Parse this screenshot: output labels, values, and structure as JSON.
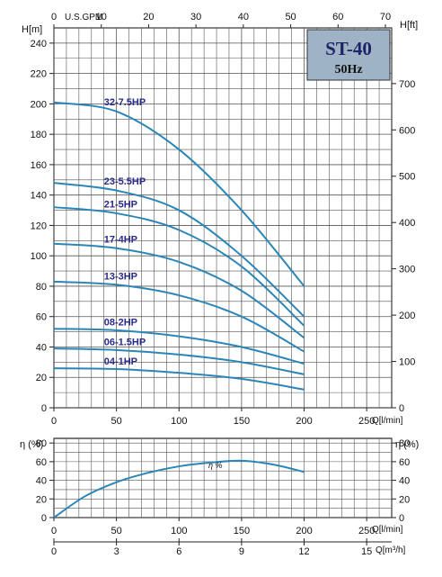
{
  "chart_data": [
    {
      "type": "line",
      "model": "ST-40",
      "frequency": "50Hz",
      "x_unit_label": "Q[l/min]",
      "y_left_label": "H[m]",
      "y_right_label": "H[ft]",
      "top_axis_label": "U.S.GPM",
      "x_ticks": [
        0,
        50,
        100,
        150,
        200,
        250
      ],
      "xlim": [
        0,
        270
      ],
      "y_left_ticks": [
        0,
        20,
        40,
        60,
        80,
        100,
        120,
        140,
        160,
        180,
        200,
        220,
        240
      ],
      "ylim": [
        0,
        250
      ],
      "y_right_ticks": [
        0,
        100,
        200,
        300,
        400,
        500,
        600,
        700
      ],
      "top_ticks": [
        0,
        10,
        20,
        30,
        40,
        50,
        60,
        70
      ],
      "grid": true,
      "series": [
        {
          "name": "32-7.5HP",
          "x": [
            0,
            50,
            100,
            150,
            200
          ],
          "y": [
            201,
            195,
            170,
            130,
            80
          ]
        },
        {
          "name": "23-5.5HP",
          "x": [
            0,
            50,
            100,
            150,
            200
          ],
          "y": [
            148,
            143,
            130,
            100,
            60
          ]
        },
        {
          "name": "21-5HP",
          "x": [
            0,
            50,
            100,
            150,
            200
          ],
          "y": [
            132,
            128,
            117,
            93,
            54
          ]
        },
        {
          "name": "17-4HP",
          "x": [
            0,
            50,
            100,
            150,
            200
          ],
          "y": [
            108,
            105,
            96,
            77,
            46
          ]
        },
        {
          "name": "13-3HP",
          "x": [
            0,
            50,
            100,
            150,
            200
          ],
          "y": [
            83,
            81,
            74,
            60,
            37
          ]
        },
        {
          "name": "08-2HP",
          "x": [
            0,
            50,
            100,
            150,
            200
          ],
          "y": [
            52,
            51,
            47,
            40,
            29
          ]
        },
        {
          "name": "06-1.5HP",
          "x": [
            0,
            50,
            100,
            150,
            200
          ],
          "y": [
            39,
            38,
            35,
            30,
            22
          ]
        },
        {
          "name": "04-1HP",
          "x": [
            0,
            50,
            100,
            150,
            200
          ],
          "y": [
            26,
            25.5,
            23,
            19,
            12
          ]
        }
      ]
    },
    {
      "type": "line",
      "y_left_label": "η (%)",
      "y_right_label": "η (%)",
      "curve_label": "η %",
      "x_label_lmin": "Q[l/min]",
      "x_label_m3h": "Q[m³/h]",
      "x_ticks": [
        0,
        50,
        100,
        150,
        200,
        250
      ],
      "xlim": [
        0,
        270
      ],
      "m3h_ticks": [
        "0",
        "3",
        "6",
        "9",
        "12",
        "15"
      ],
      "y_ticks": [
        0,
        20,
        40,
        60,
        80
      ],
      "ylim": [
        0,
        85
      ],
      "grid": true,
      "series": [
        {
          "x": [
            0,
            25,
            50,
            75,
            100,
            125,
            150,
            175,
            200
          ],
          "y": [
            0,
            23,
            38,
            48,
            55,
            59,
            61,
            57,
            49
          ]
        }
      ]
    }
  ]
}
